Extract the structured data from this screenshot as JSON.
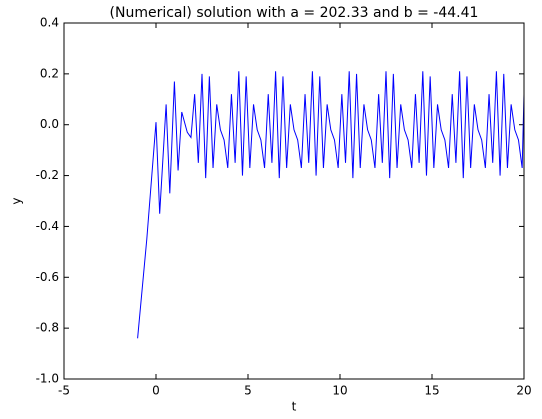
{
  "chart_data": {
    "type": "line",
    "title": "(Numerical) solution with a = 202.33 and b = -44.41",
    "x_label": "t",
    "y_label": "y",
    "color": "#0000ff",
    "x": [
      -1,
      -0.5,
      0,
      0.2,
      0.55,
      0.75,
      1,
      1.2,
      1.4,
      1.7,
      1.9,
      2.1,
      2.3,
      2.5,
      2.7,
      2.9,
      3.1,
      3.3,
      3.5,
      3.7,
      3.9,
      4.1,
      4.3,
      4.5,
      4.7,
      4.9,
      5.1,
      5.3,
      5.5,
      5.7,
      5.9,
      6.1,
      6.3,
      6.5,
      6.7,
      6.9,
      7.1,
      7.3,
      7.5,
      7.7,
      7.9,
      8.1,
      8.3,
      8.5,
      8.7,
      8.9,
      9.1,
      9.3,
      9.5,
      9.7,
      9.9,
      10.1,
      10.3,
      10.5,
      10.7,
      10.9,
      11.1,
      11.3,
      11.5,
      11.7,
      11.9,
      12.1,
      12.3,
      12.5,
      12.7,
      12.9,
      13.1,
      13.3,
      13.5,
      13.7,
      13.9,
      14.1,
      14.3,
      14.5,
      14.7,
      14.9,
      15.1,
      15.3,
      15.5,
      15.7,
      15.9,
      16.1,
      16.3,
      16.5,
      16.7,
      16.9,
      17.1,
      17.3,
      17.5,
      17.7,
      17.9,
      18.1,
      18.3,
      18.5,
      18.7,
      18.9,
      19.1,
      19.3,
      19.5,
      19.7,
      19.9,
      20
    ],
    "values": [
      -0.84,
      -0.45,
      0.01,
      -0.35,
      0.08,
      -0.27,
      0.17,
      -0.18,
      0.05,
      -0.03,
      -0.05,
      0.12,
      -0.15,
      0.2,
      -0.21,
      0.19,
      -0.17,
      0.08,
      -0.02,
      -0.06,
      -0.17,
      0.12,
      -0.15,
      0.21,
      -0.2,
      0.19,
      -0.17,
      0.08,
      -0.02,
      -0.06,
      -0.17,
      0.12,
      -0.15,
      0.21,
      -0.21,
      0.19,
      -0.17,
      0.08,
      -0.02,
      -0.06,
      -0.17,
      0.12,
      -0.15,
      0.21,
      -0.2,
      0.19,
      -0.17,
      0.08,
      -0.02,
      -0.06,
      -0.17,
      0.12,
      -0.15,
      0.21,
      -0.21,
      0.2,
      -0.17,
      0.08,
      -0.02,
      -0.06,
      -0.17,
      0.12,
      -0.15,
      0.21,
      -0.21,
      0.2,
      -0.17,
      0.08,
      -0.02,
      -0.06,
      -0.17,
      0.12,
      -0.15,
      0.21,
      -0.2,
      0.19,
      -0.17,
      0.08,
      -0.02,
      -0.06,
      -0.17,
      0.12,
      -0.15,
      0.21,
      -0.21,
      0.19,
      -0.17,
      0.08,
      -0.02,
      -0.06,
      -0.17,
      0.12,
      -0.15,
      0.21,
      -0.2,
      0.2,
      -0.17,
      0.08,
      -0.02,
      -0.06,
      -0.17,
      0.12
    ],
    "xlim": [
      -5,
      20
    ],
    "ylim": [
      -1,
      0.4
    ],
    "xticks": [
      -5,
      0,
      5,
      10,
      15,
      20
    ],
    "yticks": [
      {
        "value": -1,
        "label": "-1.0"
      },
      -0.8,
      -0.6,
      -0.4,
      -0.2,
      {
        "value": 0,
        "label": "0.0"
      },
      0.2,
      0.4
    ],
    "grid": false
  }
}
